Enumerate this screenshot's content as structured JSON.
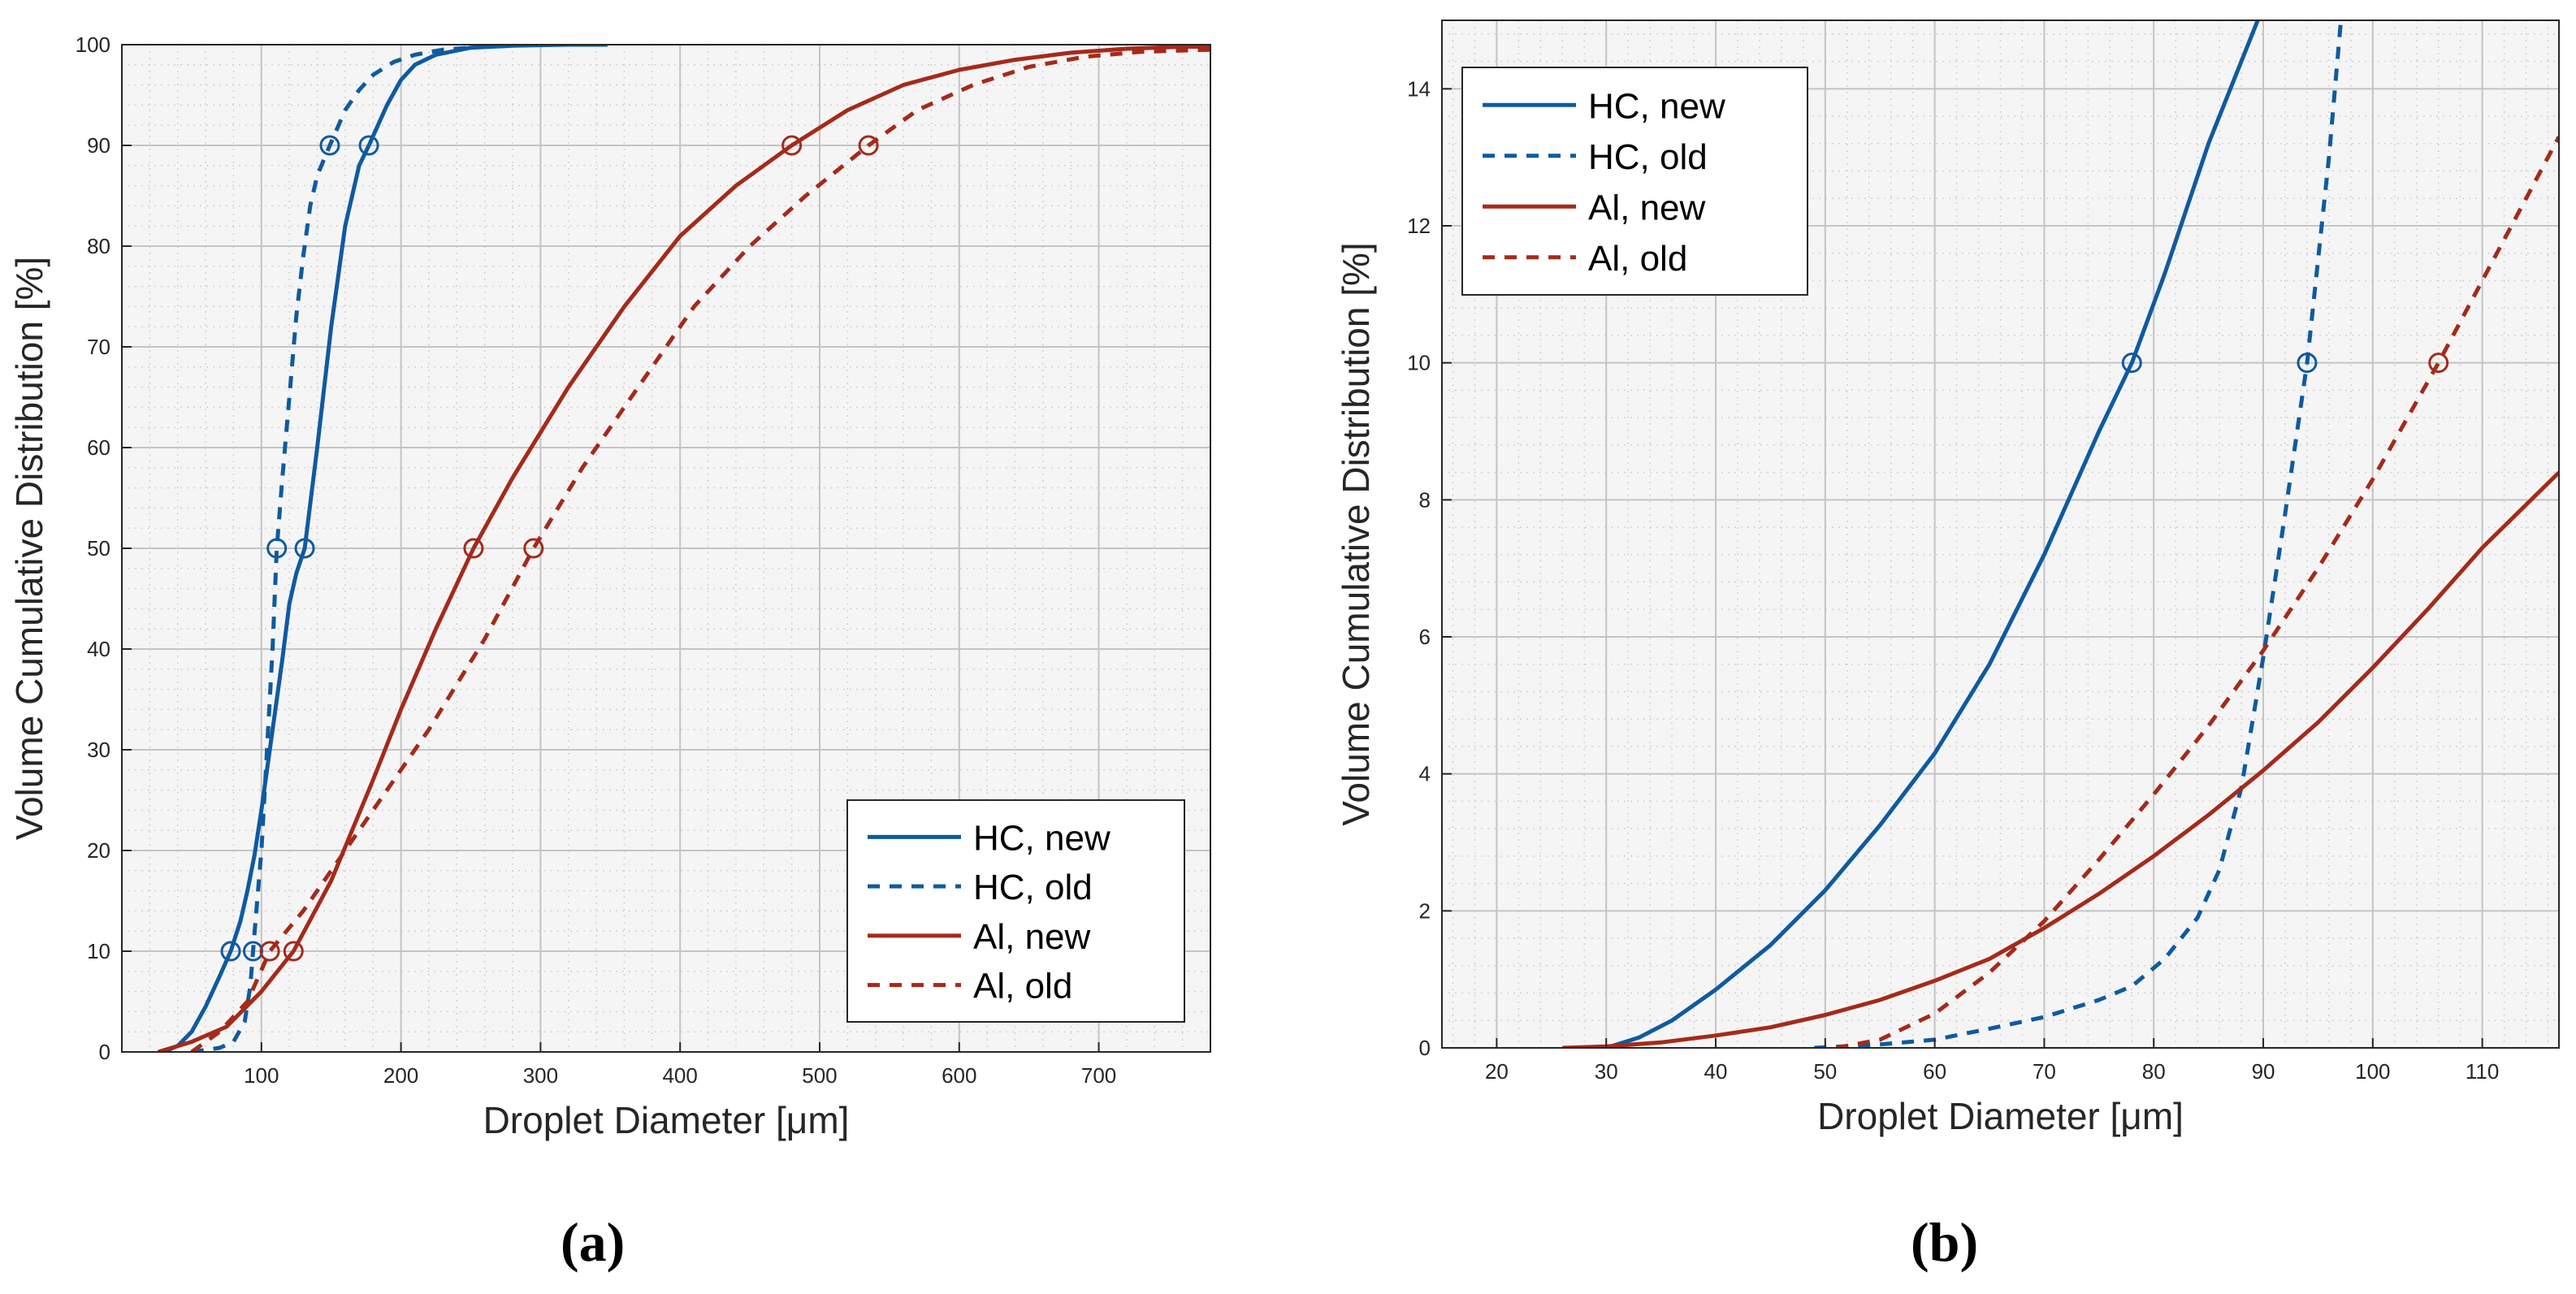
{
  "figure": {
    "panel_labels": [
      "(a)",
      "(b)"
    ]
  },
  "chart_data": [
    {
      "type": "line",
      "panel": "(a)",
      "xlabel": "Droplet Diameter [μm]",
      "ylabel": "Volume Cumulative Distribution [%]",
      "xlim": [
        0,
        780
      ],
      "ylim": [
        0,
        100
      ],
      "xticks": [
        100,
        200,
        300,
        400,
        500,
        600,
        700
      ],
      "yticks": [
        0,
        10,
        20,
        30,
        40,
        50,
        60,
        70,
        80,
        90,
        100
      ],
      "grid": true,
      "minor_grid": true,
      "legend_position": "bottom-right",
      "series": [
        {
          "name": "HC, new",
          "color": "#0f5aa0",
          "dash": "solid",
          "x": [
            30,
            40,
            50,
            60,
            70,
            78,
            85,
            90,
            95,
            100,
            105,
            110,
            115,
            120,
            125,
            131,
            140,
            150,
            160,
            170,
            177,
            190,
            200,
            210,
            225,
            250,
            280,
            320,
            348
          ],
          "y": [
            0,
            0.6,
            2,
            4.5,
            7.5,
            10,
            13,
            16,
            19.5,
            24,
            29,
            34,
            39,
            44.5,
            47.5,
            50,
            60,
            72,
            82,
            88,
            90,
            94,
            96.5,
            98,
            99,
            99.7,
            99.9,
            100,
            100
          ],
          "markers": {
            "x": [
              78,
              131,
              177
            ],
            "y": [
              10,
              50,
              90
            ]
          }
        },
        {
          "name": "HC, old",
          "color": "#0f5aa0",
          "dash": "dashed",
          "x": [
            50,
            70,
            80,
            88,
            92,
            94,
            97,
            100,
            104,
            108,
            111,
            115,
            120,
            125,
            130,
            135,
            140,
            149,
            160,
            170,
            180,
            195,
            210,
            230,
            260,
            300,
            348
          ],
          "y": [
            0,
            0.4,
            1,
            3,
            6.5,
            10,
            15,
            20,
            30,
            40,
            50,
            57,
            65,
            73,
            79,
            84,
            87,
            90,
            93.5,
            95.5,
            97,
            98.3,
            99,
            99.5,
            99.8,
            100,
            100
          ],
          "markers": {
            "x": [
              94,
              111,
              149
            ],
            "y": [
              10,
              50,
              90
            ]
          }
        },
        {
          "name": "Al, new",
          "color": "#a52a1a",
          "dash": "solid",
          "x": [
            26,
            50,
            75,
            100,
            123,
            150,
            180,
            200,
            225,
            252,
            280,
            320,
            360,
            400,
            440,
            480,
            520,
            560,
            600,
            640,
            680,
            720,
            760,
            780
          ],
          "y": [
            0,
            1,
            2.5,
            6,
            10,
            17,
            27,
            34,
            42,
            50,
            57,
            66,
            74,
            81,
            86,
            90,
            93.5,
            96,
            97.5,
            98.5,
            99.2,
            99.6,
            99.8,
            99.8
          ],
          "markers": {
            "x": [
              123,
              252,
              480
            ],
            "y": [
              10,
              50,
              90
            ]
          }
        },
        {
          "name": "Al, old",
          "color": "#a52a1a",
          "dash": "dashed",
          "x": [
            50,
            70,
            90,
            106,
            130,
            160,
            190,
            220,
            260,
            295,
            330,
            370,
            410,
            450,
            490,
            535,
            570,
            610,
            650,
            690,
            730,
            780
          ],
          "y": [
            0,
            2,
            5,
            10,
            14,
            20,
            26,
            32,
            41,
            50,
            58,
            66,
            74,
            80,
            85,
            90,
            93.5,
            96,
            97.8,
            98.8,
            99.3,
            99.5
          ],
          "markers": {
            "x": [
              106,
              295,
              535
            ],
            "y": [
              10,
              50,
              90
            ]
          }
        }
      ]
    },
    {
      "type": "line",
      "panel": "(b)",
      "xlabel": "Droplet Diameter [μm]",
      "ylabel": "Volume Cumulative Distribution [%]",
      "xlim": [
        15,
        117
      ],
      "ylim": [
        0,
        15
      ],
      "xticks": [
        20,
        30,
        40,
        50,
        60,
        70,
        80,
        90,
        100,
        110
      ],
      "yticks": [
        0,
        2,
        4,
        6,
        8,
        10,
        12,
        14
      ],
      "grid": true,
      "minor_grid": true,
      "legend_position": "top-left",
      "series": [
        {
          "name": "HC, new",
          "color": "#0f5aa0",
          "dash": "solid",
          "x": [
            30,
            33,
            36,
            40,
            45,
            50,
            55,
            60,
            65,
            70,
            75,
            78,
            81,
            85,
            90
          ],
          "y": [
            0,
            0.15,
            0.4,
            0.85,
            1.5,
            2.3,
            3.25,
            4.3,
            5.6,
            7.2,
            9,
            10,
            11.3,
            13.2,
            15.2
          ],
          "markers": {
            "x": [
              78
            ],
            "y": [
              10
            ]
          }
        },
        {
          "name": "HC, old",
          "color": "#0f5aa0",
          "dash": "dashed",
          "x": [
            49,
            55,
            60,
            65,
            70,
            75,
            78,
            81,
            84,
            86,
            88,
            90,
            92,
            94,
            96,
            97.2
          ],
          "y": [
            0,
            0.05,
            0.12,
            0.28,
            0.45,
            0.7,
            0.9,
            1.3,
            1.9,
            2.6,
            3.8,
            5.7,
            7.8,
            10,
            13,
            15.2
          ],
          "markers": {
            "x": [
              94
            ],
            "y": [
              10
            ]
          }
        },
        {
          "name": "Al, new",
          "color": "#a52a1a",
          "dash": "solid",
          "x": [
            26,
            30,
            35,
            40,
            45,
            50,
            55,
            60,
            65,
            70,
            75,
            80,
            85,
            90,
            95,
            100,
            105,
            110,
            117
          ],
          "y": [
            0,
            0.02,
            0.08,
            0.18,
            0.3,
            0.48,
            0.7,
            0.98,
            1.3,
            1.75,
            2.25,
            2.8,
            3.4,
            4.05,
            4.75,
            5.55,
            6.4,
            7.3,
            8.4
          ],
          "markers": {
            "x": [],
            "y": []
          }
        },
        {
          "name": "Al, old",
          "color": "#a52a1a",
          "dash": "dashed",
          "x": [
            51,
            55,
            60,
            65,
            70,
            75,
            80,
            85,
            90,
            95,
            100,
            106,
            110,
            117
          ],
          "y": [
            0,
            0.12,
            0.5,
            1.1,
            1.85,
            2.75,
            3.7,
            4.7,
            5.8,
            7,
            8.3,
            10,
            11.2,
            13.3
          ],
          "markers": {
            "x": [
              106
            ],
            "y": [
              10
            ]
          }
        }
      ]
    }
  ]
}
